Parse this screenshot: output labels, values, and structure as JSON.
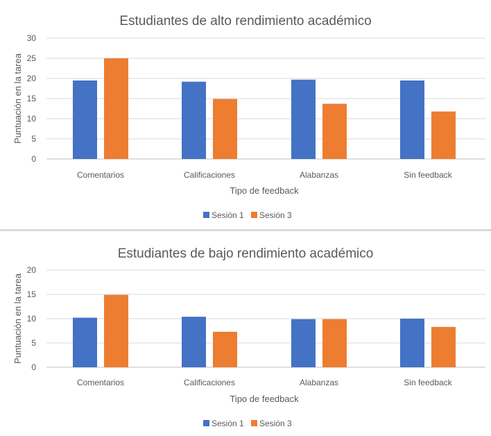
{
  "chart_data": [
    {
      "type": "bar",
      "title": "Estudiantes de alto rendimiento académico",
      "xlabel": "Tipo de feedback",
      "ylabel": "Puntuación en la tarea",
      "categories": [
        "Comentarios",
        "Calificaciones",
        "Alabanzas",
        "Sin feedback"
      ],
      "series": [
        {
          "name": "Sesión 1",
          "values": [
            19.5,
            19.2,
            19.7,
            19.5
          ],
          "color": "#4472c4"
        },
        {
          "name": "Sesión 3",
          "values": [
            25.0,
            14.9,
            13.7,
            11.8
          ],
          "color": "#ed7d31"
        }
      ],
      "ylim": [
        0,
        30
      ],
      "yticks": [
        0,
        5,
        10,
        15,
        20,
        25,
        30
      ],
      "grid": true,
      "legend": "bottom"
    },
    {
      "type": "bar",
      "title": "Estudiantes de bajo rendimiento académico",
      "xlabel": "Tipo de feedback",
      "ylabel": "Puntuación en la tarea",
      "categories": [
        "Comentarios",
        "Calificaciones",
        "Alabanzas",
        "Sin feedback"
      ],
      "series": [
        {
          "name": "Sesión 1",
          "values": [
            10.2,
            10.4,
            9.9,
            10.0
          ],
          "color": "#4472c4"
        },
        {
          "name": "Sesión 3",
          "values": [
            14.9,
            7.3,
            9.9,
            8.3
          ],
          "color": "#ed7d31"
        }
      ],
      "ylim": [
        0,
        20
      ],
      "yticks": [
        0,
        5,
        10,
        15,
        20
      ],
      "grid": true,
      "legend": "bottom"
    }
  ]
}
